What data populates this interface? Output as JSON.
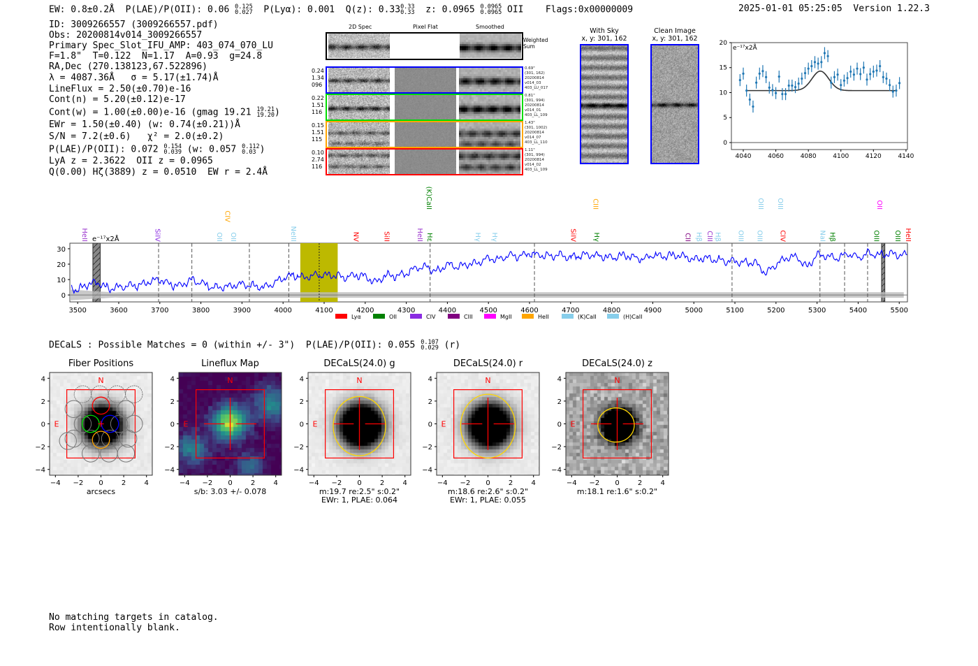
{
  "header": {
    "ew": "EW: 0.8±0.2Å",
    "plae": "P(LAE)/P(OII): 0.06",
    "plae_hi": "0.125",
    "plae_lo": "0.027",
    "plya": "P(Lyα): 0.001",
    "qz": "Q(z): 0.33",
    "qz_hi": "0.33",
    "qz_lo": "0.33",
    "z": "z: 0.0965",
    "z_hi": "0.0965",
    "z_lo": "0.0965",
    "z_line": "OII",
    "flags": "Flags:0x00000009",
    "timestamp": "2025-01-01 05:25:05",
    "version": "Version 1.22.3"
  },
  "info": {
    "id": "ID: 3009266557 (3009266557.pdf)",
    "obs": "Obs: 20200814v014_3009266557",
    "primary": "Primary Spec_Slot_IFU_AMP: 403_074_070_LU",
    "fiber_params": "F=1.8\"  T=0.122  N=1.17  A=0.93  g=24.8",
    "radec": "RA,Dec (270.138123,67.522896)",
    "lambda": "λ = 4087.36Å   σ = 5.17(±1.74)Å",
    "lineflux": "LineFlux = 2.50(±0.70)e-16",
    "cont_n": "Cont(n) = 5.20(±0.12)e-17",
    "cont_w": "Cont(w) = 1.00(±0.00)e-16 (gmag 19.21",
    "gmag_hi": "19.21",
    "gmag_lo": "19.20",
    "cont_w_end": ")",
    "ewr": "EWr = 1.50(±0.40) (w: 0.74(±0.21))Å",
    "sn": "S/N = 7.2(±0.6)   χ² = 2.0(±0.2)",
    "plae": "P(LAE)/P(OII): 0.072",
    "plae_hi": "0.154",
    "plae_lo": "0.039",
    "plae_w": "(w: 0.057",
    "plae_w_hi": "0.112",
    "plae_w_lo": "0.03",
    "plae_end": ")",
    "lya_z": "LyA z = 2.3622  OII z = 0.0965",
    "q_line": "Q(0.00) Hζ(3889) z = 0.0510  EW r = 2.4Å"
  },
  "spec2d": {
    "headers": [
      "2D Spec",
      "Pixel Flat",
      "Smoothed"
    ],
    "weighted_label": "Weighted\nSum",
    "rows": [
      {
        "color": "#0000ff",
        "left": "0.24\n1.34\n096",
        "right": "0.69\"\n(301, 162)\n20200814\nv014_03\n403_LU_017"
      },
      {
        "color": "#00dd00",
        "left": "0.22\n1.51\n116",
        "right": "0.81\"\n(301, 994)\n20200814\nv014_01\n403_LL_109"
      },
      {
        "color": "#ffa500",
        "left": "0.15\n1.51\n115",
        "right": "1.43\"\n(301, 1002)\n20200814\nv014_07\n403_LL_110"
      },
      {
        "color": "#ff0000",
        "left": "0.10\n2.74\n116",
        "right": "1.11\"\n(301, 994)\n20200814\nv014_02\n403_LL_109"
      }
    ]
  },
  "cutouts": {
    "with_sky_title": "With Sky",
    "with_sky_coords": "x, y: 301, 162",
    "clean_title": "Clean Image",
    "clean_coords": "x, y: 301, 162"
  },
  "chart_data": [
    {
      "type": "scatter",
      "title": "",
      "annotation": "e⁻¹⁷x2Å",
      "xlim": [
        4032.7,
        4140.9
      ],
      "ylim": [
        -1.4,
        20
      ],
      "xticks": [
        4040,
        4060,
        4080,
        4100,
        4120,
        4140
      ],
      "yticks": [
        0,
        5,
        10,
        15,
        20
      ],
      "x": [
        4038,
        4040,
        4042,
        4044,
        4046,
        4048,
        4050,
        4052,
        4054,
        4056,
        4058,
        4060,
        4062,
        4064,
        4066,
        4068,
        4070,
        4072,
        4074,
        4076,
        4078,
        4080,
        4082,
        4084,
        4086,
        4088,
        4090,
        4092,
        4094,
        4096,
        4098,
        4100,
        4102,
        4104,
        4106,
        4108,
        4110,
        4112,
        4114,
        4116,
        4118,
        4120,
        4122,
        4124,
        4126,
        4128,
        4130,
        4132,
        4134,
        4136
      ],
      "y": [
        12.5,
        13.8,
        10.4,
        8.6,
        7.2,
        12.0,
        13.8,
        14.3,
        13.1,
        11.0,
        10.5,
        9.9,
        13.2,
        9.7,
        9.7,
        11.4,
        11.4,
        11.1,
        11.8,
        12.8,
        13.9,
        14.8,
        15.3,
        16.1,
        15.8,
        16.1,
        17.9,
        17.3,
        12.0,
        13.1,
        13.6,
        11.5,
        12.4,
        12.9,
        14.2,
        13.6,
        14.8,
        13.7,
        15.0,
        12.6,
        13.7,
        14.2,
        14.4,
        15.3,
        13.1,
        12.8,
        11.5,
        10.2,
        10.4,
        11.9
      ],
      "yerr": 1.2,
      "model": {
        "continuum": 10.4,
        "amplitude": 3.9,
        "center": 4087.36,
        "sigma": 5.17,
        "range": [
          4042,
          4134
        ]
      }
    },
    {
      "type": "line",
      "annotation": "e⁻¹⁷x2Å",
      "xlim": [
        3481,
        5520
      ],
      "ylim": [
        -4.5,
        33.6
      ],
      "xticks": [
        3500,
        3600,
        3700,
        3800,
        3900,
        4000,
        4100,
        4200,
        4300,
        4400,
        4500,
        4600,
        4700,
        4800,
        4900,
        5000,
        5100,
        5200,
        5300,
        5400,
        5500
      ],
      "yticks": [
        0,
        10,
        20,
        30
      ],
      "x": [
        3485,
        3500,
        3525,
        3550,
        3575,
        3600,
        3625,
        3650,
        3675,
        3700,
        3725,
        3750,
        3775,
        3800,
        3825,
        3850,
        3875,
        3900,
        3925,
        3950,
        3975,
        4000,
        4025,
        4050,
        4075,
        4100,
        4125,
        4150,
        4175,
        4200,
        4225,
        4250,
        4275,
        4300,
        4325,
        4350,
        4375,
        4400,
        4425,
        4450,
        4475,
        4500,
        4525,
        4550,
        4575,
        4600,
        4625,
        4650,
        4675,
        4700,
        4725,
        4750,
        4775,
        4800,
        4825,
        4850,
        4875,
        4900,
        4925,
        4950,
        4975,
        5000,
        5025,
        5050,
        5075,
        5100,
        5125,
        5150,
        5175,
        5200,
        5225,
        5250,
        5275,
        5300,
        5325,
        5350,
        5375,
        5400,
        5425,
        5450,
        5475,
        5500,
        5518
      ],
      "y": [
        5,
        3,
        7,
        8,
        4,
        5,
        6,
        6,
        9,
        10,
        7,
        6,
        10,
        8,
        5,
        5,
        6,
        7,
        6,
        5,
        7,
        11,
        13,
        11,
        13,
        13,
        13,
        11,
        13,
        12,
        8,
        13,
        12,
        14,
        18,
        18,
        15,
        20,
        18,
        20,
        21,
        24,
        23,
        26,
        25,
        27,
        26,
        25,
        26,
        24,
        26,
        26,
        25,
        24,
        26,
        25,
        23,
        26,
        25,
        26,
        25,
        23,
        24,
        23,
        22,
        22,
        21,
        21,
        14,
        20,
        24,
        25,
        18,
        26,
        25,
        24,
        27,
        24,
        27,
        26,
        27,
        26,
        26
      ],
      "highlight_band": [
        4042,
        4133
      ],
      "masked_bands": [
        [
          3537,
          3555
        ],
        [
          5457,
          5465
        ]
      ],
      "dashed_lines": [
        3697,
        3778,
        3918,
        4014,
        4358,
        4612,
        5093,
        5307,
        5367,
        5423
      ],
      "dotted_line": 4088,
      "line_labels": [
        {
          "w": 3512,
          "t": "HeII",
          "c": "#9932cc",
          "tier": 0
        },
        {
          "w": 3689,
          "t": "SiIV",
          "c": "#8a2be2",
          "tier": 0
        },
        {
          "w": 3840,
          "t": "OII",
          "c": "#87ceeb",
          "tier": 0
        },
        {
          "w": 3859,
          "t": "CIV",
          "c": "#ffa500",
          "tier": 1
        },
        {
          "w": 3874,
          "t": "OII",
          "c": "#87ceeb",
          "tier": 0
        },
        {
          "w": 4020,
          "t": "NeIII",
          "c": "#87ceeb",
          "tier": 0
        },
        {
          "w": 4172,
          "t": "NV",
          "c": "#ff0000",
          "tier": 0
        },
        {
          "w": 4247,
          "t": "SiII",
          "c": "#ff0000",
          "tier": 0
        },
        {
          "w": 4328,
          "t": "HeII",
          "c": "#9932cc",
          "tier": 0
        },
        {
          "w": 4352,
          "t": "Hε",
          "c": "#008000",
          "tier": 0
        },
        {
          "w": 4350,
          "t": "(K)CaII",
          "c": "#008000",
          "tier": 2
        },
        {
          "w": 4469,
          "t": "Hγ",
          "c": "#87ceeb",
          "tier": 0
        },
        {
          "w": 4510,
          "t": "Hγ",
          "c": "#87ceeb",
          "tier": 0
        },
        {
          "w": 4701,
          "t": "SiIV",
          "c": "#ff0000",
          "tier": 0
        },
        {
          "w": 4758,
          "t": "Hγ",
          "c": "#008000",
          "tier": 0
        },
        {
          "w": 4756,
          "t": "CIII",
          "c": "#ffa500",
          "tier": 2
        },
        {
          "w": 4980,
          "t": "CII",
          "c": "#800080",
          "tier": 0
        },
        {
          "w": 5007,
          "t": "Hβ",
          "c": "#87ceeb",
          "tier": 0
        },
        {
          "w": 5034,
          "t": "CIII",
          "c": "#9932cc",
          "tier": 0
        },
        {
          "w": 5053,
          "t": "Hβ",
          "c": "#87ceeb",
          "tier": 0
        },
        {
          "w": 5109,
          "t": "OIII",
          "c": "#87ceeb",
          "tier": 0
        },
        {
          "w": 5155,
          "t": "OIII",
          "c": "#87ceeb",
          "tier": 0
        },
        {
          "w": 5158,
          "t": "OIII",
          "c": "#87ceeb",
          "tier": 2
        },
        {
          "w": 5205,
          "t": "OIII",
          "c": "#87ceeb",
          "tier": 2
        },
        {
          "w": 5211,
          "t": "CIV",
          "c": "#ff0000",
          "tier": 0
        },
        {
          "w": 5308,
          "t": "NaI",
          "c": "#87ceeb",
          "tier": 0
        },
        {
          "w": 5332,
          "t": "Hβ",
          "c": "#008000",
          "tier": 0
        },
        {
          "w": 5439,
          "t": "OIII",
          "c": "#008000",
          "tier": 0
        },
        {
          "w": 5447,
          "t": "OII",
          "c": "#ff00ff",
          "tier": 2
        },
        {
          "w": 5491,
          "t": "OIII",
          "c": "#008000",
          "tier": 0
        },
        {
          "w": 5517,
          "t": "HeII",
          "c": "#ff0000",
          "tier": 0
        }
      ],
      "legend": [
        {
          "label": "Lyα",
          "color": "#ff0000"
        },
        {
          "label": "OII",
          "color": "#008000"
        },
        {
          "label": "CIV",
          "color": "#8a2be2"
        },
        {
          "label": "CIII",
          "color": "#800080"
        },
        {
          "label": "MgII",
          "color": "#ff00ff"
        },
        {
          "label": "HeII",
          "color": "#ffa500"
        },
        {
          "label": "(K)CaII",
          "color": "#87ceeb"
        },
        {
          "label": "(H)CaII",
          "color": "#87ceeb"
        }
      ]
    }
  ],
  "decals": {
    "line": "DECaLS : Possible Matches = 0 (within +/- 3\")  P(LAE)/P(OII): 0.055",
    "hi": "0.107",
    "lo": "0.029",
    "end": "(r)"
  },
  "panels": [
    {
      "title": "Fiber Positions",
      "cap1": "arcsecs",
      "cap2": ""
    },
    {
      "title": "Lineflux Map",
      "cap1": "s/b: 3.03 +/- 0.078",
      "cap2": ""
    },
    {
      "title": "DECaLS(24.0) g",
      "cap1": "m:19.7  re:2.5\"  s:0.2\"",
      "cap2": "EWr: 1, PLAE: 0.064"
    },
    {
      "title": "DECaLS(24.0) r",
      "cap1": "m:18.6  re:2.6\"  s:0.2\"",
      "cap2": "EWr: 1, PLAE: 0.055"
    },
    {
      "title": "DECaLS(24.0) z",
      "cap1": "m:18.1  re:1.6\"  s:0.2\"",
      "cap2": ""
    }
  ],
  "compass": {
    "north": "N",
    "east": "E"
  },
  "footer": {
    "line1": "No matching targets in catalog.",
    "line2": "Row intentionally blank."
  }
}
